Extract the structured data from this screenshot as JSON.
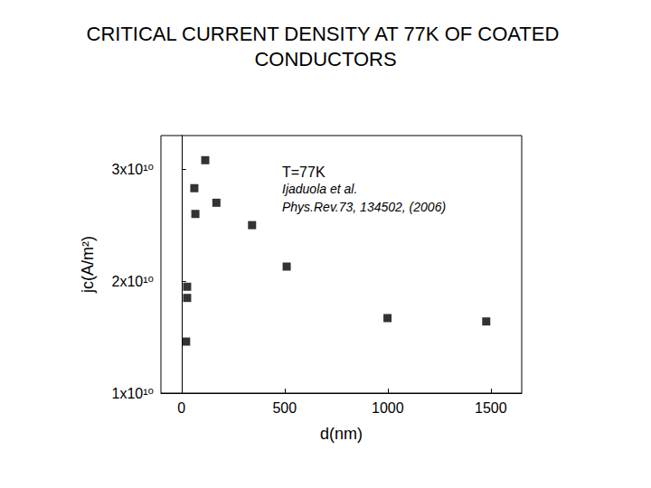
{
  "chart_data": {
    "type": "scatter",
    "title": "CRITICAL CURRENT DENSITY AT 77K OF COATED CONDUCTORS",
    "x_label": "d(nm)",
    "y_label": "jc(A/m²)",
    "annotations": [
      "T=77K",
      "Ijaduola et al.",
      "Phys.Rev.73, 134502, (2006)"
    ],
    "x": [
      22,
      27,
      27,
      62,
      67,
      115,
      169,
      342,
      510,
      999,
      1478
    ],
    "values": [
      14600000000,
      18500000000,
      19500000000,
      28300000000,
      26000000000,
      30800000000,
      27000000000,
      25000000000,
      21300000000,
      16700000000,
      16400000000
    ],
    "color": "#000000",
    "marker": "square",
    "xlim": [
      -100,
      1650
    ],
    "xticks": [
      0,
      500,
      1000,
      1500
    ],
    "ylim": [
      10000000000,
      33000000000
    ],
    "yticks": [
      {
        "value": 10000000000,
        "label": "1x10¹⁰"
      },
      {
        "value": 20000000000,
        "label": "2x10¹⁰"
      },
      {
        "value": 30000000000,
        "label": "3x10¹⁰"
      }
    ],
    "grid": false
  }
}
